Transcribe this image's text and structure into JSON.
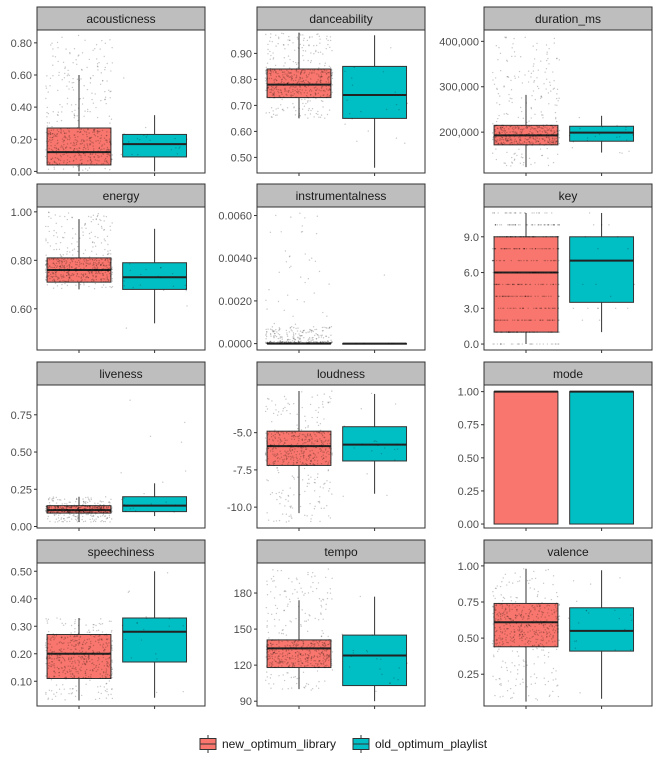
{
  "chart_data": {
    "type": "boxplot",
    "layout": "facet-wrap 4x3, free y scales",
    "groups": [
      "new_optimum_library",
      "old_optimum_playlist"
    ],
    "colors": {
      "new_optimum_library": "#F8766D",
      "old_optimum_playlist": "#00BFC4",
      "strip": "#bebebe",
      "border": "#333333",
      "points": "#000000"
    },
    "legend": {
      "position": "bottom",
      "entries": [
        "new_optimum_library",
        "old_optimum_playlist"
      ]
    },
    "panels": [
      {
        "title": "acousticness",
        "ylim": [
          -0.01,
          0.88
        ],
        "ticks": [
          0,
          0.2,
          0.4,
          0.6,
          0.8
        ],
        "tick_labels": [
          "0.00",
          "0.20",
          "0.40",
          "0.60",
          "0.80"
        ],
        "points_range": [
          [
            0.0,
            0.85
          ],
          [
            0.0,
            0.65
          ]
        ],
        "point_density": [
          500,
          20
        ],
        "boxes": [
          {
            "min": 0.0,
            "q1": 0.04,
            "median": 0.12,
            "q3": 0.27,
            "max": 0.6
          },
          {
            "min": 0.0,
            "q1": 0.09,
            "median": 0.17,
            "q3": 0.23,
            "max": 0.35
          }
        ]
      },
      {
        "title": "danceability",
        "ylim": [
          0.44,
          0.99
        ],
        "ticks": [
          0.5,
          0.6,
          0.7,
          0.8,
          0.9
        ],
        "tick_labels": [
          "0.50",
          "0.60",
          "0.70",
          "0.80",
          "0.90"
        ],
        "points_range": [
          [
            0.65,
            0.98
          ],
          [
            0.46,
            0.97
          ]
        ],
        "point_density": [
          500,
          20
        ],
        "boxes": [
          {
            "min": 0.65,
            "q1": 0.73,
            "median": 0.78,
            "q3": 0.84,
            "max": 0.98
          },
          {
            "min": 0.46,
            "q1": 0.65,
            "median": 0.74,
            "q3": 0.85,
            "max": 0.97
          }
        ]
      },
      {
        "title": "duration_ms",
        "ylim": [
          110000,
          425000
        ],
        "ticks": [
          200000,
          300000,
          400000
        ],
        "tick_labels": [
          "200,000",
          "300,000",
          "400,000"
        ],
        "points_range": [
          [
            125000,
            410000
          ],
          [
            150000,
            240000
          ]
        ],
        "point_density": [
          500,
          20
        ],
        "boxes": [
          {
            "min": 123000,
            "q1": 172000,
            "median": 193000,
            "q3": 215000,
            "max": 282000
          },
          {
            "min": 155000,
            "q1": 180000,
            "median": 199000,
            "q3": 213000,
            "max": 236000
          }
        ]
      },
      {
        "title": "energy",
        "ylim": [
          0.43,
          1.02
        ],
        "ticks": [
          0.6,
          0.8,
          1.0
        ],
        "tick_labels": [
          "0.60",
          "0.80",
          "1.00"
        ],
        "points_range": [
          [
            0.68,
            1.0
          ],
          [
            0.44,
            0.93
          ]
        ],
        "point_density": [
          500,
          20
        ],
        "boxes": [
          {
            "min": 0.68,
            "q1": 0.71,
            "median": 0.76,
            "q3": 0.81,
            "max": 0.97
          },
          {
            "min": 0.54,
            "q1": 0.68,
            "median": 0.73,
            "q3": 0.79,
            "max": 0.93
          }
        ]
      },
      {
        "title": "instrumentalness",
        "ylim": [
          -0.0003,
          0.0064
        ],
        "ticks": [
          0,
          0.002,
          0.004,
          0.006
        ],
        "tick_labels": [
          "0.0000",
          "0.0020",
          "0.0040",
          "0.0060"
        ],
        "points_range": [
          [
            0.0,
            0.0062
          ],
          [
            0.0,
            0.0062
          ]
        ],
        "point_density": [
          300,
          8
        ],
        "boxes": [
          {
            "min": 0.0,
            "q1": 0.0,
            "median": 0.0,
            "q3": 3e-05,
            "max": 8e-05
          },
          {
            "min": 0.0,
            "q1": 0.0,
            "median": 0.0,
            "q3": 0.0,
            "max": 0.0
          }
        ]
      },
      {
        "title": "key",
        "ylim": [
          -0.5,
          11.5
        ],
        "ticks": [
          0,
          3,
          6,
          9
        ],
        "tick_labels": [
          "0.0",
          "3.0",
          "6.0",
          "9.0"
        ],
        "points_range": [
          [
            0,
            11
          ],
          [
            1,
            11
          ]
        ],
        "point_density": [
          500,
          20
        ],
        "boxes": [
          {
            "min": 0,
            "q1": 1,
            "median": 6,
            "q3": 9,
            "max": 11
          },
          {
            "min": 1,
            "q1": 3.5,
            "median": 7,
            "q3": 9,
            "max": 11
          }
        ]
      },
      {
        "title": "liveness",
        "ylim": [
          -0.01,
          0.95
        ],
        "ticks": [
          0,
          0.25,
          0.5,
          0.75
        ],
        "tick_labels": [
          "0.00",
          "0.25",
          "0.50",
          "0.75"
        ],
        "points_range": [
          [
            0.03,
            0.2
          ],
          [
            0.06,
            0.92
          ]
        ],
        "point_density": [
          500,
          20
        ],
        "boxes": [
          {
            "min": 0.03,
            "q1": 0.09,
            "median": 0.11,
            "q3": 0.14,
            "max": 0.2
          },
          {
            "min": 0.07,
            "q1": 0.1,
            "median": 0.14,
            "q3": 0.2,
            "max": 0.29
          }
        ]
      },
      {
        "title": "loudness",
        "ylim": [
          -11.4,
          -1.8
        ],
        "ticks": [
          -10,
          -7.5,
          -5
        ],
        "tick_labels": [
          "-10.0",
          "-7.5",
          "-5.0"
        ],
        "points_range": [
          [
            -11.0,
            -2.2
          ],
          [
            -10.5,
            -2.3
          ]
        ],
        "point_density": [
          500,
          20
        ],
        "boxes": [
          {
            "min": -10.4,
            "q1": -7.2,
            "median": -5.9,
            "q3": -4.9,
            "max": -2.2
          },
          {
            "min": -9.1,
            "q1": -6.9,
            "median": -5.8,
            "q3": -4.6,
            "max": -2.4
          }
        ]
      },
      {
        "title": "mode",
        "ylim": [
          -0.03,
          1.05
        ],
        "ticks": [
          0,
          0.25,
          0.5,
          0.75,
          1.0
        ],
        "tick_labels": [
          "0.00",
          "0.25",
          "0.50",
          "0.75",
          "1.00"
        ],
        "points_range": [
          [
            0,
            1
          ],
          [
            0,
            1
          ]
        ],
        "point_density": [
          0,
          0
        ],
        "boxes": [
          {
            "min": 0,
            "q1": 0,
            "median": 1,
            "q3": 1,
            "max": 1
          },
          {
            "min": 0,
            "q1": 0,
            "median": 1,
            "q3": 1,
            "max": 1
          }
        ]
      },
      {
        "title": "speechiness",
        "ylim": [
          0.01,
          0.53
        ],
        "ticks": [
          0.1,
          0.2,
          0.3,
          0.4,
          0.5
        ],
        "tick_labels": [
          "0.10",
          "0.20",
          "0.30",
          "0.40",
          "0.50"
        ],
        "points_range": [
          [
            0.03,
            0.33
          ],
          [
            0.04,
            0.51
          ]
        ],
        "point_density": [
          500,
          20
        ],
        "boxes": [
          {
            "min": 0.03,
            "q1": 0.11,
            "median": 0.2,
            "q3": 0.27,
            "max": 0.33
          },
          {
            "min": 0.04,
            "q1": 0.17,
            "median": 0.28,
            "q3": 0.33,
            "max": 0.5
          }
        ]
      },
      {
        "title": "tempo",
        "ylim": [
          86,
          205
        ],
        "ticks": [
          90,
          120,
          150,
          180
        ],
        "tick_labels": [
          "90",
          "120",
          "150",
          "180"
        ],
        "points_range": [
          [
            99,
            200
          ],
          [
            89,
            178
          ]
        ],
        "point_density": [
          500,
          20
        ],
        "boxes": [
          {
            "min": 100,
            "q1": 118,
            "median": 134,
            "q3": 141,
            "max": 174
          },
          {
            "min": 90,
            "q1": 103,
            "median": 128,
            "q3": 145,
            "max": 177
          }
        ]
      },
      {
        "title": "valence",
        "ylim": [
          0.03,
          1.02
        ],
        "ticks": [
          0.25,
          0.5,
          0.75,
          1.0
        ],
        "tick_labels": [
          "0.25",
          "0.50",
          "0.75",
          "1.00"
        ],
        "points_range": [
          [
            0.06,
            0.98
          ],
          [
            0.08,
            0.97
          ]
        ],
        "point_density": [
          500,
          20
        ],
        "boxes": [
          {
            "min": 0.06,
            "q1": 0.44,
            "median": 0.61,
            "q3": 0.74,
            "max": 0.98
          },
          {
            "min": 0.08,
            "q1": 0.41,
            "median": 0.55,
            "q3": 0.71,
            "max": 0.97
          }
        ]
      }
    ]
  }
}
